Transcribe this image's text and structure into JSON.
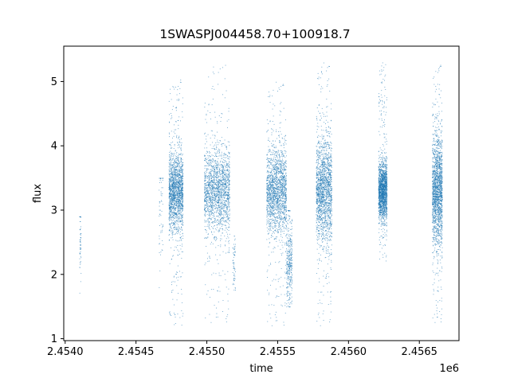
{
  "chart_data": {
    "type": "scatter",
    "title": "1SWASPJ004458.70+100918.7",
    "xlabel": "time",
    "ylabel": "flux",
    "x_offset_label": "1e6",
    "xlim": [
      2453990,
      2456780
    ],
    "ylim": [
      0.97,
      5.55
    ],
    "xticks": [
      2454000,
      2454500,
      2455000,
      2455500,
      2456000,
      2456500
    ],
    "xtick_labels": [
      "2.4540",
      "2.4545",
      "2.4550",
      "2.4555",
      "2.4560",
      "2.4565"
    ],
    "yticks": [
      1,
      2,
      3,
      4,
      5
    ],
    "ytick_labels": [
      "1",
      "2",
      "3",
      "4",
      "5"
    ],
    "grid": false,
    "marker_color": "#1f77b4",
    "clusters": [
      {
        "x_range": [
          2454100,
          2454110
        ],
        "y_center": 2.6,
        "y_spread": 0.35,
        "y_min": 1.6,
        "y_max": 2.9,
        "density": "sparse"
      },
      {
        "x_range": [
          2454660,
          2454690
        ],
        "y_center": 2.9,
        "y_spread": 0.6,
        "y_min": 1.8,
        "y_max": 3.5,
        "density": "sparse"
      },
      {
        "x_range": [
          2454730,
          2454830
        ],
        "y_center": 3.3,
        "y_spread": 0.3,
        "y_min": 1.2,
        "y_max": 5.05,
        "density": "dense"
      },
      {
        "x_range": [
          2454980,
          2455160
        ],
        "y_center": 3.3,
        "y_spread": 0.32,
        "y_min": 1.25,
        "y_max": 5.3,
        "density": "dense"
      },
      {
        "x_range": [
          2455180,
          2455200
        ],
        "y_center": 2.2,
        "y_spread": 0.25,
        "y_min": 1.7,
        "y_max": 2.6,
        "density": "sparse"
      },
      {
        "x_range": [
          2455420,
          2455560
        ],
        "y_center": 3.3,
        "y_spread": 0.33,
        "y_min": 1.2,
        "y_max": 5.0,
        "density": "dense"
      },
      {
        "x_range": [
          2455560,
          2455600
        ],
        "y_center": 2.2,
        "y_spread": 0.35,
        "y_min": 1.5,
        "y_max": 3.0,
        "density": "medium"
      },
      {
        "x_range": [
          2455770,
          2455880
        ],
        "y_center": 3.3,
        "y_spread": 0.4,
        "y_min": 1.2,
        "y_max": 5.3,
        "density": "dense"
      },
      {
        "x_range": [
          2456210,
          2456270
        ],
        "y_center": 3.3,
        "y_spread": 0.22,
        "y_min": 2.2,
        "y_max": 5.3,
        "density": "dense"
      },
      {
        "x_range": [
          2456590,
          2456660
        ],
        "y_center": 3.3,
        "y_spread": 0.42,
        "y_min": 1.25,
        "y_max": 5.3,
        "density": "dense"
      }
    ]
  }
}
